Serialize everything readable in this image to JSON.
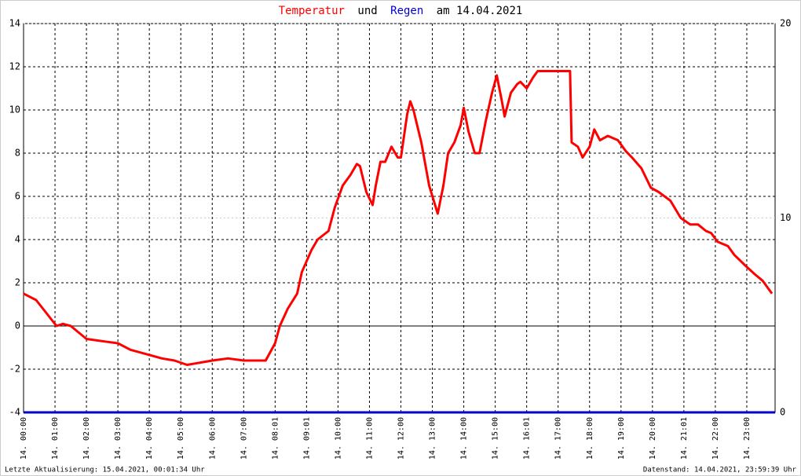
{
  "chart_data": {
    "type": "line",
    "title_joiner": "und",
    "title_suffix": "am 14.04.2021",
    "footer_left": "Letzte Aktualisierung: 15.04.2021, 00:01:34 Uhr",
    "footer_right": "Datenstand: 14.04.2021, 23:59:39 Uhr",
    "xlim": [
      0,
      23.9
    ],
    "ylim": [
      -4,
      14
    ],
    "y2lim": [
      0,
      20
    ],
    "yticks": [
      -4,
      -2,
      0,
      2,
      4,
      6,
      8,
      10,
      12,
      14
    ],
    "y2ticks": [
      0,
      10,
      20
    ],
    "xticks": [
      {
        "value": 0,
        "label": "14. 00:00"
      },
      {
        "value": 1,
        "label": "14. 01:00"
      },
      {
        "value": 2,
        "label": "14. 02:00"
      },
      {
        "value": 3,
        "label": "14. 03:00"
      },
      {
        "value": 4,
        "label": "14. 04:00"
      },
      {
        "value": 5,
        "label": "14. 05:00"
      },
      {
        "value": 6,
        "label": "14. 06:00"
      },
      {
        "value": 7,
        "label": "14. 07:00"
      },
      {
        "value": 8,
        "label": "14. 08:01"
      },
      {
        "value": 9,
        "label": "14. 09:01"
      },
      {
        "value": 10,
        "label": "14. 10:00"
      },
      {
        "value": 11,
        "label": "14. 11:00"
      },
      {
        "value": 12,
        "label": "14. 12:00"
      },
      {
        "value": 13,
        "label": "14. 13:00"
      },
      {
        "value": 14,
        "label": "14. 14:00"
      },
      {
        "value": 15,
        "label": "14. 15:00"
      },
      {
        "value": 16,
        "label": "14. 16:01"
      },
      {
        "value": 17,
        "label": "14. 17:00"
      },
      {
        "value": 18,
        "label": "14. 18:00"
      },
      {
        "value": 19,
        "label": "14. 19:00"
      },
      {
        "value": 20,
        "label": "14. 20:00"
      },
      {
        "value": 21,
        "label": "14. 21:01"
      },
      {
        "value": 22,
        "label": "14. 22:00"
      },
      {
        "value": 23,
        "label": "14. 23:00"
      }
    ],
    "grid": true,
    "series": [
      {
        "name": "Temperatur",
        "color": "#ff0000",
        "x": [
          0,
          0.4,
          1.05,
          1.25,
          1.5,
          2,
          2.5,
          3,
          3.4,
          3.9,
          4.4,
          4.8,
          5.2,
          5.6,
          6,
          6.5,
          7,
          7.2,
          7.7,
          8,
          8.15,
          8.4,
          8.7,
          8.85,
          9.15,
          9.35,
          9.7,
          9.9,
          10.15,
          10.4,
          10.6,
          10.7,
          10.9,
          11.1,
          11.2,
          11.35,
          11.5,
          11.7,
          11.9,
          12,
          12.2,
          12.3,
          12.4,
          12.65,
          12.9,
          13.17,
          13.35,
          13.5,
          13.7,
          13.9,
          14,
          14.15,
          14.35,
          14.5,
          14.7,
          14.9,
          15.05,
          15.2,
          15.3,
          15.5,
          15.7,
          15.8,
          16,
          16.2,
          16.35,
          17.38,
          17.43,
          17.63,
          17.78,
          18,
          18.15,
          18.33,
          18.58,
          18.9,
          19.15,
          19.35,
          19.65,
          19.95,
          20.2,
          20.57,
          20.9,
          21.2,
          21.45,
          21.7,
          21.87,
          22.07,
          22.4,
          22.6,
          22.95,
          23.25,
          23.5,
          23.8
        ],
        "values": [
          1.5,
          1.2,
          0,
          0.1,
          0,
          -0.6,
          -0.7,
          -0.8,
          -1.1,
          -1.3,
          -1.5,
          -1.6,
          -1.8,
          -1.7,
          -1.6,
          -1.5,
          -1.6,
          -1.6,
          -1.6,
          -0.8,
          0,
          0.8,
          1.5,
          2.5,
          3.5,
          4,
          4.4,
          5.5,
          6.5,
          7,
          7.5,
          7.4,
          6.2,
          5.6,
          6.5,
          7.6,
          7.6,
          8.3,
          7.8,
          7.8,
          9.8,
          10.4,
          10,
          8.5,
          6.5,
          5.2,
          6.5,
          8,
          8.5,
          9.3,
          10.1,
          9,
          8,
          8,
          9.5,
          10.8,
          11.6,
          10.5,
          9.7,
          10.8,
          11.2,
          11.3,
          11,
          11.5,
          11.8,
          11.8,
          8.5,
          8.3,
          7.8,
          8.3,
          9.1,
          8.6,
          8.8,
          8.6,
          8.1,
          7.8,
          7.3,
          6.4,
          6.2,
          5.8,
          5,
          4.7,
          4.7,
          4.4,
          4.3,
          3.9,
          3.7,
          3.3,
          2.8,
          2.4,
          2.1,
          1.5
        ]
      },
      {
        "name": "Regen",
        "color": "#0000cc",
        "axis": "y2",
        "x": [
          0,
          23.9
        ],
        "values": [
          0,
          0
        ]
      }
    ]
  }
}
